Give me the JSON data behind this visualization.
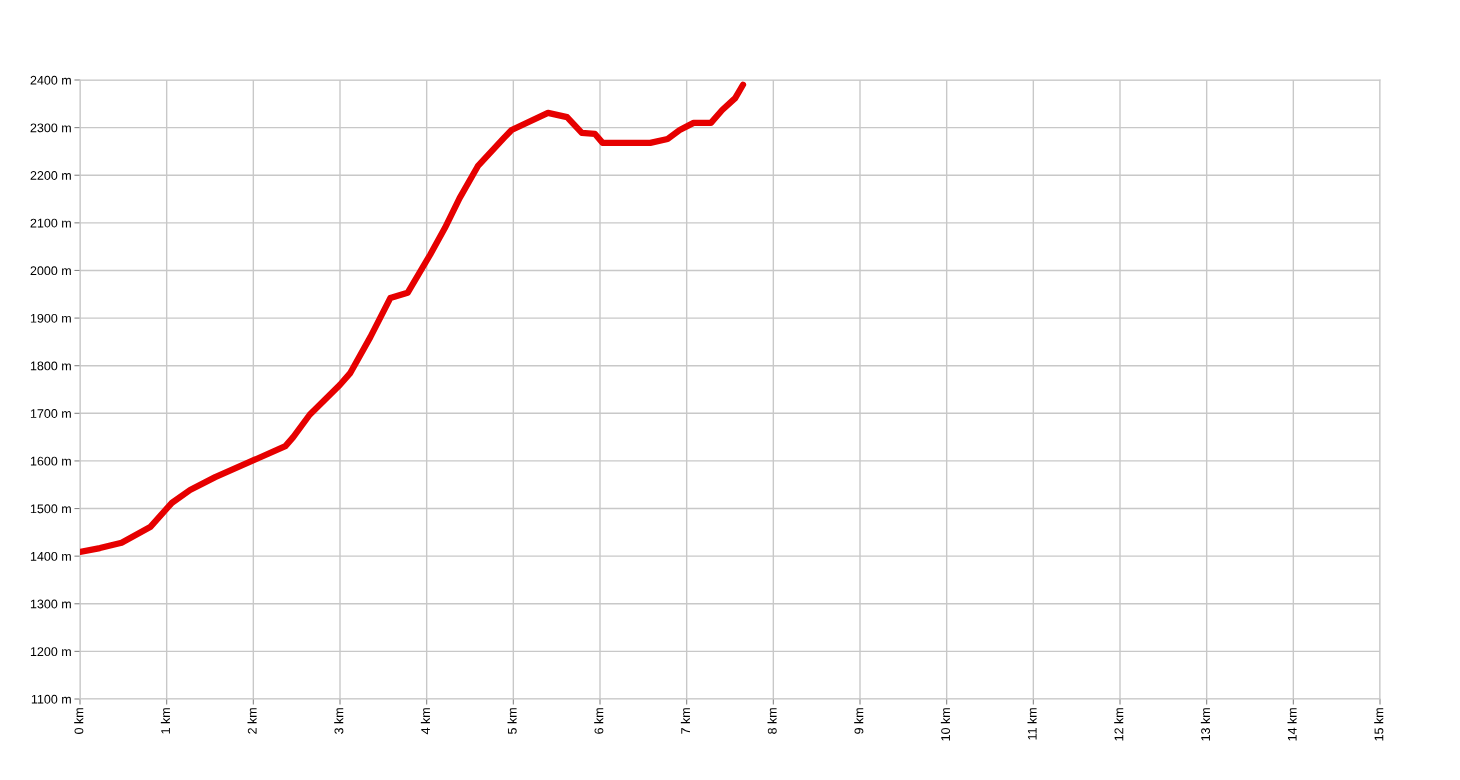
{
  "chart_data": {
    "type": "line",
    "x": [
      0,
      0.23,
      0.48,
      0.81,
      1.06,
      1.27,
      1.56,
      2.01,
      2.37,
      2.46,
      2.65,
      3.0,
      3.12,
      3.35,
      3.58,
      3.78,
      4.04,
      4.21,
      4.38,
      4.59,
      4.9,
      4.98,
      5.4,
      5.62,
      5.79,
      5.94,
      6.03,
      6.58,
      6.78,
      6.92,
      7.08,
      7.28,
      7.41,
      7.56,
      7.65
    ],
    "series": [
      {
        "color": "#e60000",
        "values": [
          1409,
          1417,
          1428,
          1461,
          1512,
          1539,
          1566,
          1602,
          1631,
          1650,
          1697,
          1760,
          1785,
          1860,
          1942,
          1953,
          2033,
          2089,
          2152,
          2219,
          2280,
          2295,
          2331,
          2322,
          2289,
          2287,
          2268,
          2268,
          2276,
          2295,
          2310,
          2310,
          2337,
          2362,
          2390
        ]
      }
    ],
    "xlim": [
      0,
      15
    ],
    "xticks": [
      {
        "value": 0,
        "label": "0 km"
      },
      {
        "value": 1,
        "label": "1 km"
      },
      {
        "value": 2,
        "label": "2 km"
      },
      {
        "value": 3,
        "label": "3 km"
      },
      {
        "value": 4,
        "label": "4 km"
      },
      {
        "value": 5,
        "label": "5 km"
      },
      {
        "value": 6,
        "label": "6 km"
      },
      {
        "value": 7,
        "label": "7 km"
      },
      {
        "value": 8,
        "label": "8 km"
      },
      {
        "value": 9,
        "label": "9 km"
      },
      {
        "value": 10,
        "label": "10 km"
      },
      {
        "value": 11,
        "label": "11 km"
      },
      {
        "value": 12,
        "label": "12 km"
      },
      {
        "value": 13,
        "label": "13 km"
      },
      {
        "value": 14,
        "label": "14 km"
      },
      {
        "value": 15,
        "label": "15 km"
      }
    ],
    "ylim": [
      1100,
      2400
    ],
    "yticks": [
      {
        "value": 1100,
        "label": "1100 m"
      },
      {
        "value": 1200,
        "label": "1200 m"
      },
      {
        "value": 1300,
        "label": "1300 m"
      },
      {
        "value": 1400,
        "label": "1400 m"
      },
      {
        "value": 1500,
        "label": "1500 m"
      },
      {
        "value": 1600,
        "label": "1600 m"
      },
      {
        "value": 1700,
        "label": "1700 m"
      },
      {
        "value": 1800,
        "label": "1800 m"
      },
      {
        "value": 1900,
        "label": "1900 m"
      },
      {
        "value": 2000,
        "label": "2000 m"
      },
      {
        "value": 2100,
        "label": "2100 m"
      },
      {
        "value": 2200,
        "label": "2200 m"
      },
      {
        "value": 2300,
        "label": "2300 m"
      },
      {
        "value": 2400,
        "label": "2400 m"
      }
    ],
    "grid": true,
    "marker": "none",
    "line_style": "solid"
  }
}
